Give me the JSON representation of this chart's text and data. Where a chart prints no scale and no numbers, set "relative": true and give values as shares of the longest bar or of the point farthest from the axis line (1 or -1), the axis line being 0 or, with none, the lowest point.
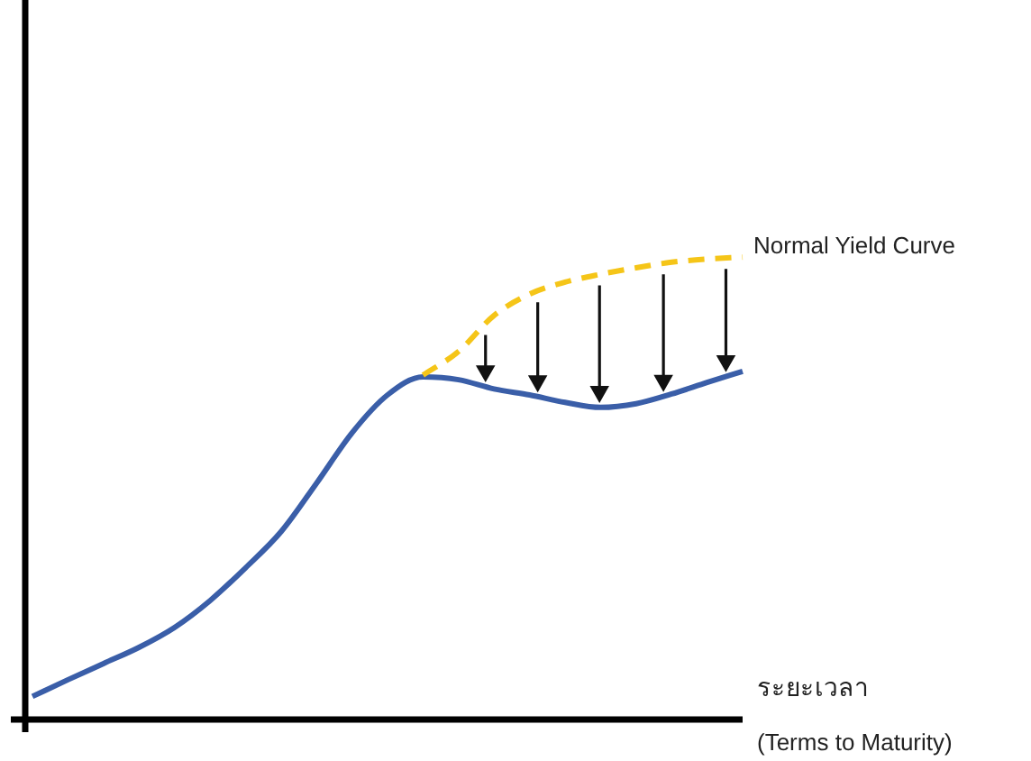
{
  "chart_data": {
    "type": "line",
    "relative": true,
    "xlabel": "ระยะเวลา",
    "annotations": [
      "(Terms to Maturity)"
    ],
    "categories": [
      null,
      null,
      null,
      null,
      null,
      null,
      null,
      null,
      null,
      null,
      null,
      null,
      null,
      null,
      null,
      null,
      null,
      null,
      null,
      null,
      null
    ],
    "series": [
      {
        "color": "#3a5ea8",
        "line_style": "solid",
        "values": [
          0.05,
          0.086,
          0.121,
          0.156,
          0.199,
          0.257,
          0.328,
          0.406,
          0.511,
          0.62,
          0.702,
          0.741,
          0.735,
          0.715,
          0.702,
          0.686,
          0.675,
          0.683,
          0.704,
          0.729,
          0.753
        ]
      },
      {
        "name": "Normal Yield Curve",
        "color": "#f5c518",
        "line_style": "dashed",
        "values": [
          null,
          null,
          null,
          null,
          null,
          null,
          null,
          null,
          null,
          null,
          null,
          0.745,
          0.796,
          0.874,
          0.92,
          0.946,
          0.963,
          0.977,
          0.989,
          0.996,
          1
        ]
      }
    ]
  }
}
